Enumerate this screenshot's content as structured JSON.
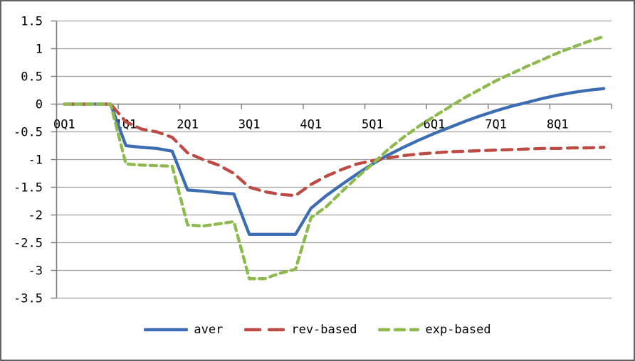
{
  "chart_data": {
    "type": "line",
    "title": "",
    "x_axis": {
      "tick_labels": [
        "0Q1",
        "1Q1",
        "2Q1",
        "3Q1",
        "4Q1",
        "5Q1",
        "6Q1",
        "7Q1",
        "8Q1"
      ],
      "quarters_per_tick": 4,
      "n_points": 36
    },
    "y_axis": {
      "min": -3.5,
      "max": 1.5,
      "step": 0.5,
      "tick_labels": [
        "1.5",
        "1",
        "0.5",
        "0",
        "-0.5",
        "-1",
        "-1.5",
        "-2",
        "-2.5",
        "-3",
        "-3.5"
      ]
    },
    "grid": true,
    "legend_position": "bottom",
    "colors": {
      "aver": "#3c6db3",
      "rev_based": "#bd4a43",
      "exp_based": "#8dba4d",
      "gridline": "#a0a0a0",
      "axis": "#7d7d7d",
      "text": "#000000"
    },
    "series": [
      {
        "name": "aver",
        "color": "#3c6db3",
        "style": "solid",
        "values": [
          0,
          0,
          0,
          0,
          -0.75,
          -0.78,
          -0.8,
          -0.85,
          -1.55,
          -1.57,
          -1.6,
          -1.62,
          -2.35,
          -2.35,
          -2.35,
          -2.35,
          -1.88,
          -1.65,
          -1.45,
          -1.26,
          -1.08,
          -0.92,
          -0.78,
          -0.65,
          -0.53,
          -0.42,
          -0.31,
          -0.21,
          -0.12,
          -0.04,
          0.03,
          0.1,
          0.16,
          0.21,
          0.25,
          0.28
        ]
      },
      {
        "name": "rev-based",
        "color": "#bd4a43",
        "style": "dashed-long",
        "values": [
          0,
          0,
          0,
          0,
          -0.32,
          -0.45,
          -0.5,
          -0.6,
          -0.88,
          -1.0,
          -1.1,
          -1.25,
          -1.5,
          -1.58,
          -1.63,
          -1.65,
          -1.45,
          -1.3,
          -1.18,
          -1.08,
          -1.02,
          -0.97,
          -0.93,
          -0.9,
          -0.88,
          -0.86,
          -0.85,
          -0.84,
          -0.83,
          -0.82,
          -0.81,
          -0.8,
          -0.8,
          -0.79,
          -0.79,
          -0.78
        ]
      },
      {
        "name": "exp-based",
        "color": "#8dba4d",
        "style": "dashed-short",
        "values": [
          0,
          0,
          0,
          0,
          -1.08,
          -1.1,
          -1.11,
          -1.12,
          -2.18,
          -2.2,
          -2.16,
          -2.12,
          -3.15,
          -3.15,
          -3.05,
          -2.98,
          -2.05,
          -1.85,
          -1.58,
          -1.32,
          -1.08,
          -0.82,
          -0.6,
          -0.4,
          -0.22,
          -0.05,
          0.12,
          0.27,
          0.42,
          0.55,
          0.68,
          0.8,
          0.92,
          1.03,
          1.13,
          1.22
        ]
      }
    ]
  }
}
